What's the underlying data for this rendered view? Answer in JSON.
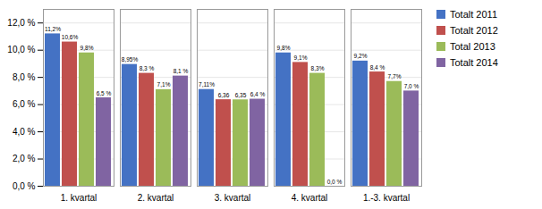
{
  "chart_data": {
    "type": "bar",
    "categories": [
      "1. kvartal",
      "2. kvartal",
      "3. kvartal",
      "4. kvartal",
      "1.-3. kvartal"
    ],
    "series": [
      {
        "name": "Totalt 2011",
        "color": "#4472C4",
        "values": [
          11.2,
          8.95,
          7.11,
          9.8,
          9.2
        ],
        "value_labels": [
          "11,2%",
          "8,95%",
          "7,11%",
          "9,8%",
          "9,2%"
        ]
      },
      {
        "name": "Totalt 2012",
        "color": "#C0504D",
        "values": [
          10.6,
          8.3,
          6.36,
          9.1,
          8.4
        ],
        "value_labels": [
          "10,6%",
          "8,3 %",
          "6,36",
          "9,1%",
          "8,4 %"
        ]
      },
      {
        "name": "Total 2013",
        "color": "#9BBB59",
        "values": [
          9.8,
          7.1,
          6.35,
          8.3,
          7.7
        ],
        "value_labels": [
          "9,8%",
          "7,1%",
          "6,35",
          "8,3%",
          "7,7%"
        ]
      },
      {
        "name": "Totalt 2014",
        "color": "#8064A2",
        "values": [
          6.5,
          8.1,
          6.4,
          0.0,
          7.0
        ],
        "value_labels": [
          "6,5 %",
          "8,1 %",
          "6,4 %",
          "0,0 %",
          "7,0 %"
        ]
      }
    ],
    "ylim": [
      0,
      13.0
    ],
    "yticks": [
      {
        "value": 0,
        "label": "0,0 %"
      },
      {
        "value": 2,
        "label": "2,0 %"
      },
      {
        "value": 4,
        "label": "4,0 %"
      },
      {
        "value": 6,
        "label": "6,0 %"
      },
      {
        "value": 8,
        "label": "8,0 %"
      },
      {
        "value": 10,
        "label": "10,0 %"
      },
      {
        "value": 12,
        "label": "12,0 %"
      }
    ],
    "grid": true,
    "legend": "right",
    "data_labels": true
  }
}
